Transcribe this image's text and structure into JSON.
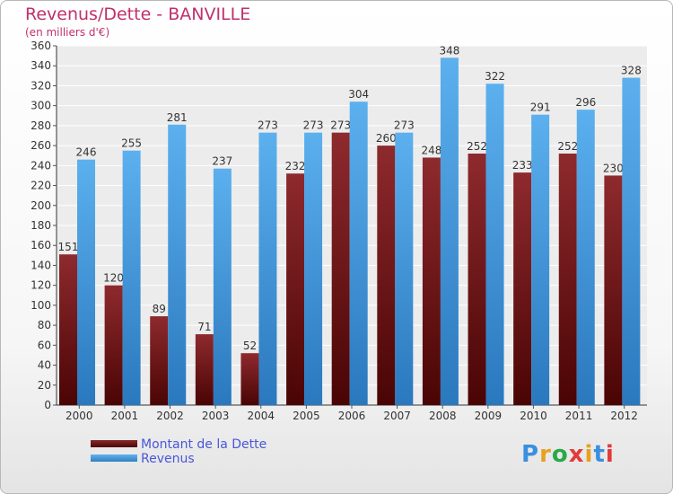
{
  "header": {
    "title": "Revenus/Dette - BANVILLE",
    "subtitle": "(en milliers d'€)"
  },
  "legend": {
    "debt_label": "Montant de la Dette",
    "revenue_label": "Revenus"
  },
  "logo": {
    "text": "Proxiti"
  },
  "colors": {
    "debt": "#6e1414",
    "revenue": "#4aa3e6",
    "title": "#c0306c",
    "legend_text": "#4a56d8"
  },
  "chart_data": {
    "type": "bar",
    "title": "Revenus/Dette - BANVILLE",
    "subtitle": "(en milliers d'€)",
    "categories": [
      "2000",
      "2001",
      "2002",
      "2003",
      "2004",
      "2005",
      "2006",
      "2007",
      "2008",
      "2009",
      "2010",
      "2011",
      "2012"
    ],
    "series": [
      {
        "name": "Montant de la Dette",
        "values": [
          151,
          120,
          89,
          71,
          52,
          232,
          273,
          260,
          248,
          252,
          233,
          252,
          230
        ]
      },
      {
        "name": "Revenus",
        "values": [
          246,
          255,
          281,
          237,
          273,
          273,
          304,
          273,
          348,
          322,
          291,
          296,
          328
        ]
      }
    ],
    "ylim": [
      0,
      360
    ],
    "yticks": [
      0,
      20,
      40,
      60,
      80,
      100,
      120,
      140,
      160,
      180,
      200,
      220,
      240,
      260,
      280,
      300,
      320,
      340,
      360
    ],
    "grid": true,
    "legend": "bottom-left"
  }
}
